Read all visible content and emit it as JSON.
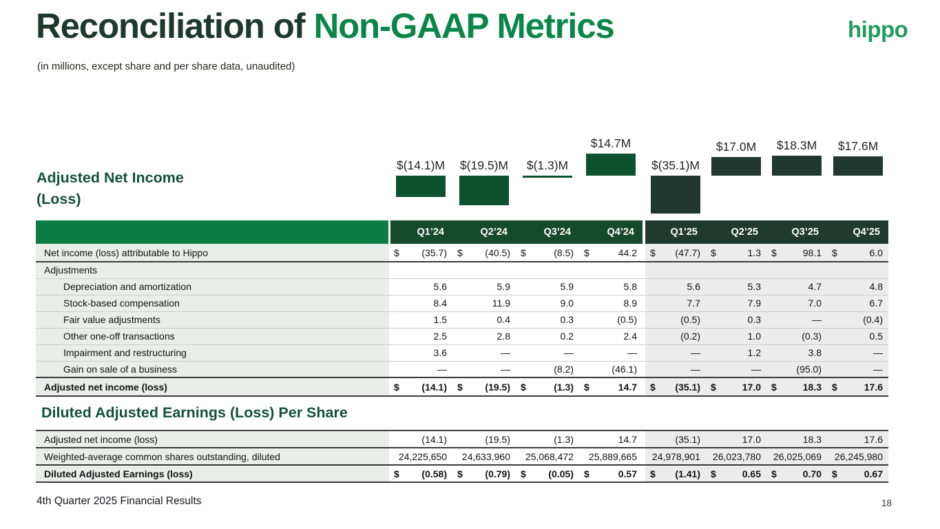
{
  "page": {
    "title_prefix": "Reconciliation of ",
    "title_highlight": "Non-GAAP Metrics",
    "subtitle": "(in millions, except share and per share data, unaudited)",
    "logo": "hippo",
    "footer": "4th Quarter 2025 Financial Results",
    "page_number": "18"
  },
  "sections": {
    "chart_title": "Adjusted Net Income (Loss)",
    "table2_title": "Diluted Adjusted Earnings (Loss) Per Share"
  },
  "colors": {
    "title_dark": "#1d392e",
    "title_green": "#0a8748",
    "logo_green": "#219c5b",
    "heading_green": "#145138",
    "bar_2024": "#0d5230",
    "bar_2025": "#20382f",
    "header_label_bg": "#0c7d45",
    "header_2024_bg": "#154a2b",
    "header_2025_bg": "#203a30",
    "label_col_bg": "#e9eee9",
    "col_2025_bg": "#ececec"
  },
  "chart_data": {
    "type": "bar",
    "title": "Adjusted Net Income (Loss)",
    "unit": "USD millions",
    "categories": [
      "Q1'24",
      "Q2'24",
      "Q3'24",
      "Q4'24",
      "Q1'25",
      "Q2'25",
      "Q3'25",
      "Q4'25"
    ],
    "values": [
      -14.1,
      -19.5,
      -1.3,
      14.7,
      -35.1,
      17.0,
      18.3,
      17.6
    ],
    "labels": [
      "$(14.1)M",
      "$(19.5)M",
      "$(1.3)M",
      "$14.7M",
      "$(35.1)M",
      "$17.0M",
      "$18.3M",
      "$17.6M"
    ],
    "legend": "none",
    "grid": false
  },
  "table1": {
    "columns": [
      "Q1’24",
      "Q2’24",
      "Q3’24",
      "Q4’24",
      "Q1’25",
      "Q2’25",
      "Q3’25",
      "Q4’25"
    ],
    "rows": [
      {
        "label": "Net income (loss) attributable to Hippo",
        "indent": 0,
        "dollar": true,
        "rule": "dark",
        "values": [
          "(35.7)",
          "(40.5)",
          "(8.5)",
          "44.2",
          "(47.7)",
          "1.3",
          "98.1",
          "6.0"
        ]
      },
      {
        "label": "Adjustments",
        "indent": 0,
        "rule": "light",
        "values": [
          "",
          "",
          "",
          "",
          "",
          "",
          "",
          ""
        ]
      },
      {
        "label": "Depreciation and amortization",
        "indent": 1,
        "rule": "light",
        "values": [
          "5.6",
          "5.9",
          "5.9",
          "5.8",
          "5.6",
          "5.3",
          "4.7",
          "4.8"
        ]
      },
      {
        "label": "Stock-based compensation",
        "indent": 1,
        "rule": "light",
        "values": [
          "8.4",
          "11.9",
          "9.0",
          "8.9",
          "7.7",
          "7.9",
          "7.0",
          "6.7"
        ]
      },
      {
        "label": "Fair value adjustments",
        "indent": 1,
        "rule": "light",
        "values": [
          "1.5",
          "0.4",
          "0.3",
          "(0.5)",
          "(0.5)",
          "0.3",
          "—",
          "(0.4)"
        ]
      },
      {
        "label": "Other one-off transactions",
        "indent": 1,
        "rule": "light",
        "values": [
          "2.5",
          "2.8",
          "0.2",
          "2.4",
          "(0.2)",
          "1.0",
          "(0.3)",
          "0.5"
        ]
      },
      {
        "label": "Impairment and restructuring",
        "indent": 1,
        "rule": "light",
        "values": [
          "3.6",
          "—",
          "—",
          "—",
          "—",
          "1.2",
          "3.8",
          "—"
        ]
      },
      {
        "label": "Gain on sale of a business",
        "indent": 1,
        "rule": "dark",
        "values": [
          "—",
          "—",
          "(8.2)",
          "(46.1)",
          "—",
          "—",
          "(95.0)",
          "—"
        ]
      },
      {
        "label": "Adjusted net income (loss)",
        "indent": 0,
        "bold": true,
        "dollar": true,
        "rule": "dark",
        "values": [
          "(14.1)",
          "(19.5)",
          "(1.3)",
          "14.7",
          "(35.1)",
          "17.0",
          "18.3",
          "17.6"
        ]
      }
    ]
  },
  "table2": {
    "rows": [
      {
        "label": "Adjusted net income (loss)",
        "indent": 0,
        "rule": "dark",
        "values": [
          "(14.1)",
          "(19.5)",
          "(1.3)",
          "14.7",
          "(35.1)",
          "17.0",
          "18.3",
          "17.6"
        ]
      },
      {
        "label": "Weighted-average common shares outstanding, diluted",
        "indent": 0,
        "rule": "dark",
        "values": [
          "24,225,650",
          "24,633,960",
          "25,068,472",
          "25,889,665",
          "24,978,901",
          "26,023,780",
          "26,025,069",
          "26,245,980"
        ]
      },
      {
        "label": "Diluted Adjusted Earnings (loss)",
        "indent": 0,
        "bold": true,
        "dollar": true,
        "rule": "dark",
        "values": [
          "(0.58)",
          "(0.79)",
          "(0.05)",
          "0.57",
          "(1.41)",
          "0.65",
          "0.70",
          "0.67"
        ]
      }
    ]
  }
}
